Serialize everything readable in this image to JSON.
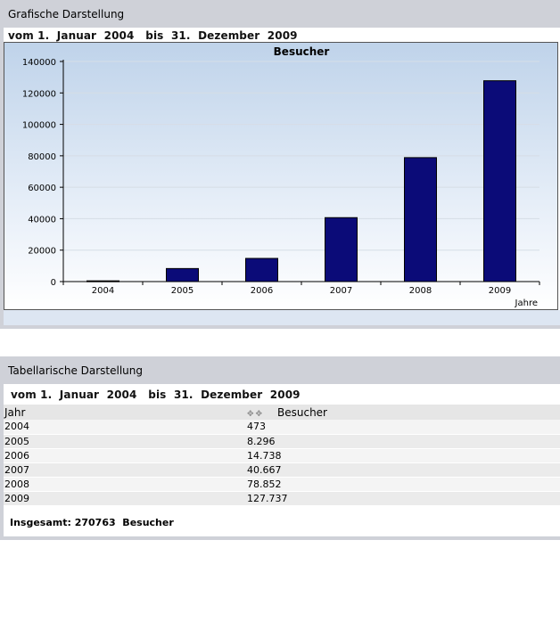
{
  "graphic": {
    "title": "Grafische Darstellung",
    "date_range": "vom 1.  Januar  2004   bis  31.  Dezember  2009"
  },
  "chart_data": {
    "type": "bar",
    "title": "Besucher",
    "xlabel": "Jahre",
    "ylabel": "",
    "categories": [
      "2004",
      "2005",
      "2006",
      "2007",
      "2008",
      "2009"
    ],
    "values": [
      473,
      8296,
      14738,
      40667,
      78852,
      127737
    ],
    "ylim": [
      0,
      140000
    ],
    "yticks": [
      "0",
      "20000",
      "40000",
      "60000",
      "80000",
      "100000",
      "120000",
      "140000"
    ],
    "grid": true,
    "bar_color": "#0b0b78"
  },
  "tabular": {
    "title": "Tabellarische Darstellung",
    "date_range": "vom 1.  Januar  2004   bis  31.  Dezember  2009",
    "col_year": "Jahr",
    "col_visitors": "Besucher",
    "rows": [
      {
        "year": "2004",
        "visitors": "473"
      },
      {
        "year": "2005",
        "visitors": "8.296"
      },
      {
        "year": "2006",
        "visitors": "14.738"
      },
      {
        "year": "2007",
        "visitors": "40.667"
      },
      {
        "year": "2008",
        "visitors": "78.852"
      },
      {
        "year": "2009",
        "visitors": "127.737"
      }
    ],
    "total": "Insgesamt: 270763  Besucher"
  }
}
